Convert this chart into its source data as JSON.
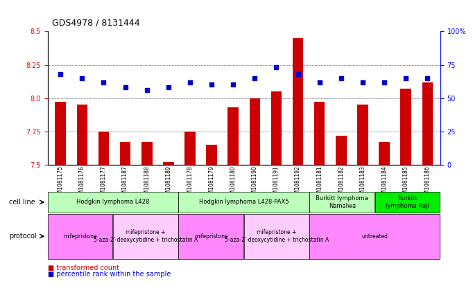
{
  "title": "GDS4978 / 8131444",
  "samples": [
    "GSM1081175",
    "GSM1081176",
    "GSM1081177",
    "GSM1081187",
    "GSM1081188",
    "GSM1081189",
    "GSM1081178",
    "GSM1081179",
    "GSM1081180",
    "GSM1081190",
    "GSM1081191",
    "GSM1081192",
    "GSM1081181",
    "GSM1081182",
    "GSM1081183",
    "GSM1081184",
    "GSM1081185",
    "GSM1081186"
  ],
  "bar_values": [
    7.97,
    7.95,
    7.75,
    7.67,
    7.67,
    7.52,
    7.75,
    7.65,
    7.93,
    8.0,
    8.05,
    8.45,
    7.97,
    7.72,
    7.95,
    7.67,
    8.07,
    8.12
  ],
  "dot_values": [
    68,
    65,
    62,
    58,
    56,
    58,
    62,
    60,
    60,
    65,
    73,
    68,
    62,
    65,
    62,
    62,
    65,
    65
  ],
  "ylim_left": [
    7.5,
    8.5
  ],
  "ylim_right": [
    0,
    100
  ],
  "yticks_left": [
    7.5,
    7.75,
    8.0,
    8.25,
    8.5
  ],
  "yticks_right": [
    0,
    25,
    50,
    75,
    100
  ],
  "bar_color": "#cc0000",
  "dot_color": "#0000cc",
  "cell_line_groups": [
    {
      "label": "Hodgkin lymphoma L428",
      "start": 0,
      "end": 6,
      "color": "#bbffbb"
    },
    {
      "label": "Hodgkin lymphoma L428-PAX5",
      "start": 6,
      "end": 12,
      "color": "#bbffbb"
    },
    {
      "label": "Burkitt lymphoma\nNamalwa",
      "start": 12,
      "end": 15,
      "color": "#bbffbb"
    },
    {
      "label": "Burkitt\nlymphoma Raji",
      "start": 15,
      "end": 18,
      "color": "#00ee00"
    }
  ],
  "protocol_groups": [
    {
      "label": "mifepristone",
      "start": 0,
      "end": 3,
      "color": "#ff88ff"
    },
    {
      "label": "mifepristone +\n5-aza-2'-deoxycytidine + trichostatin A",
      "start": 3,
      "end": 6,
      "color": "#ffccff"
    },
    {
      "label": "mifepristone",
      "start": 6,
      "end": 9,
      "color": "#ff88ff"
    },
    {
      "label": "mifepristone +\n5-aza-2'-deoxycytidine + trichostatin A",
      "start": 9,
      "end": 12,
      "color": "#ffccff"
    },
    {
      "label": "untreated",
      "start": 12,
      "end": 18,
      "color": "#ff88ff"
    }
  ]
}
